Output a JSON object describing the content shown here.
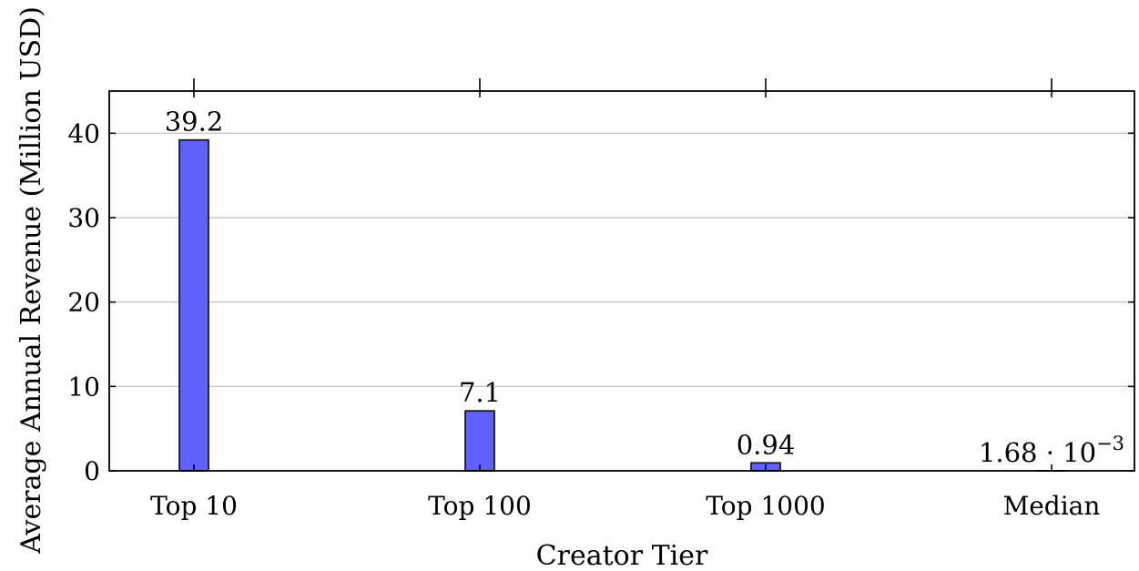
{
  "chart_data": {
    "type": "bar",
    "categories": [
      "Top 10",
      "Top 100",
      "Top 1000",
      "Median"
    ],
    "values": [
      39.2,
      7.1,
      0.94,
      0.00168
    ],
    "data_labels": [
      "39.2",
      "7.1",
      "0.94",
      "1.68 · 10"
    ],
    "data_label_exponents": [
      "",
      "",
      "",
      "−3"
    ],
    "xlabel": "Creator Tier",
    "ylabel": "Average Annual Revenue (Million USD)",
    "ylim": [
      0,
      45
    ],
    "yticks": [
      0,
      10,
      20,
      30,
      40
    ],
    "ytick_labels": [
      "0",
      "10",
      "20",
      "30",
      "40"
    ],
    "grid": "horizontal",
    "bar_color": "#6060ff"
  }
}
